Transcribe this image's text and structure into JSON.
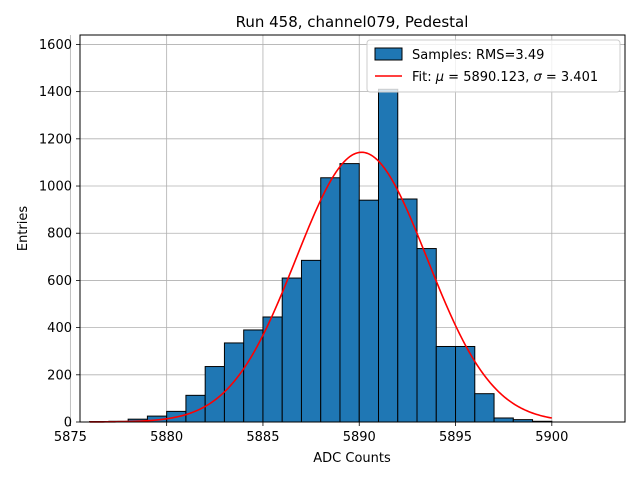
{
  "chart_data": {
    "type": "bar",
    "title": "Run 458, channel079, Pedestal",
    "xlabel": "ADC Counts",
    "ylabel": "Entries",
    "xlim": [
      5875.5,
      5903.8
    ],
    "ylim": [
      0,
      1640
    ],
    "xticks": [
      5875,
      5880,
      5885,
      5890,
      5895,
      5900
    ],
    "yticks": [
      0,
      200,
      400,
      600,
      800,
      1000,
      1200,
      1400,
      1600
    ],
    "grid": true,
    "legend_position": "top-right",
    "histogram": {
      "name": "Samples: RMS=3.49",
      "color": "#1f77b4",
      "edge_color": "#000000",
      "bin_edges": [
        5876,
        5877,
        5878,
        5879,
        5880,
        5881,
        5882,
        5883,
        5884,
        5885,
        5886,
        5887,
        5888,
        5889,
        5890,
        5891,
        5892,
        5893,
        5894,
        5895,
        5896,
        5897,
        5898,
        5899,
        5900
      ],
      "counts": [
        2,
        3,
        12,
        25,
        45,
        113,
        235,
        335,
        390,
        445,
        610,
        685,
        1035,
        1095,
        940,
        1410,
        945,
        735,
        320,
        320,
        120,
        17,
        10,
        3
      ]
    },
    "fit": {
      "name_prefix": "Fit: ",
      "name_mu": "μ",
      "name_mid": " = 5890.123, ",
      "name_sigma": "σ",
      "name_end": " = 3.401",
      "color": "#ff0000",
      "mu": 5890.123,
      "sigma": 3.401,
      "amplitude": 1143,
      "x_range": [
        5876,
        5900
      ]
    }
  }
}
